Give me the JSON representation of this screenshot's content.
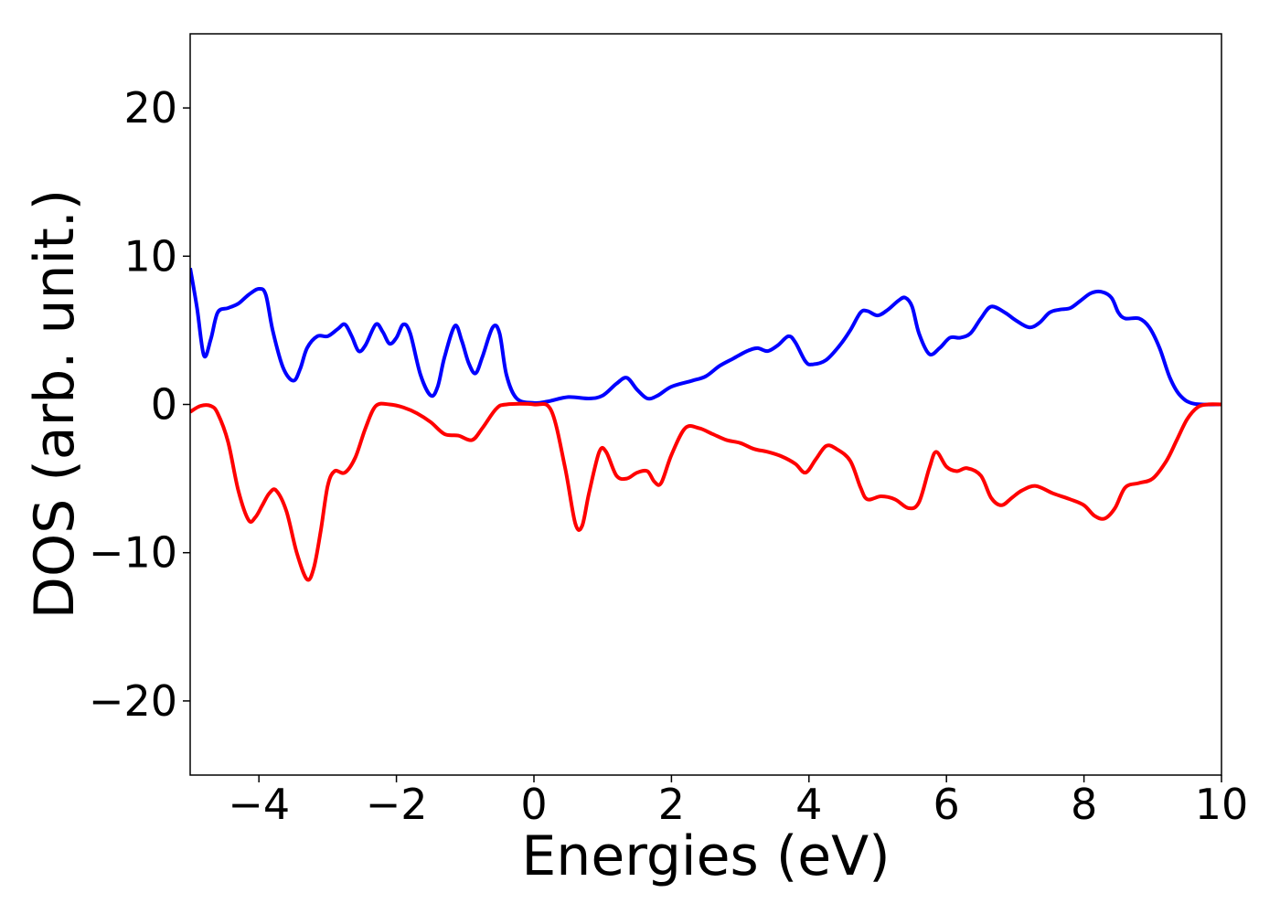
{
  "chart_data": {
    "type": "line",
    "xlabel": "Energies (eV)",
    "ylabel": "DOS (arb. unit.)",
    "xlim": [
      -5,
      10
    ],
    "ylim": [
      -25,
      25
    ],
    "x_ticks": [
      -4,
      -2,
      0,
      2,
      4,
      6,
      8,
      10
    ],
    "y_ticks": [
      -20,
      -10,
      0,
      10,
      20
    ],
    "x_tick_labels": [
      "−4",
      "−2",
      "0",
      "2",
      "4",
      "6",
      "8",
      "10"
    ],
    "y_tick_labels": [
      "−20",
      "−10",
      "0",
      "10",
      "20"
    ],
    "grid": false,
    "series": [
      {
        "color": "#0000ff",
        "points": [
          [
            -5.0,
            9.2
          ],
          [
            -4.9,
            6.5
          ],
          [
            -4.8,
            3.3
          ],
          [
            -4.7,
            4.4
          ],
          [
            -4.6,
            6.2
          ],
          [
            -4.45,
            6.5
          ],
          [
            -4.3,
            6.8
          ],
          [
            -4.15,
            7.4
          ],
          [
            -4.0,
            7.8
          ],
          [
            -3.9,
            7.4
          ],
          [
            -3.8,
            5.0
          ],
          [
            -3.65,
            2.5
          ],
          [
            -3.5,
            1.6
          ],
          [
            -3.4,
            2.4
          ],
          [
            -3.3,
            3.8
          ],
          [
            -3.15,
            4.6
          ],
          [
            -3.0,
            4.6
          ],
          [
            -2.85,
            5.1
          ],
          [
            -2.75,
            5.4
          ],
          [
            -2.65,
            4.6
          ],
          [
            -2.55,
            3.6
          ],
          [
            -2.45,
            4.0
          ],
          [
            -2.3,
            5.4
          ],
          [
            -2.2,
            4.9
          ],
          [
            -2.1,
            4.1
          ],
          [
            -2.0,
            4.5
          ],
          [
            -1.9,
            5.4
          ],
          [
            -1.8,
            4.8
          ],
          [
            -1.65,
            2.0
          ],
          [
            -1.5,
            0.6
          ],
          [
            -1.4,
            1.2
          ],
          [
            -1.3,
            3.2
          ],
          [
            -1.15,
            5.3
          ],
          [
            -1.05,
            4.3
          ],
          [
            -0.95,
            2.8
          ],
          [
            -0.85,
            2.1
          ],
          [
            -0.75,
            3.2
          ],
          [
            -0.6,
            5.2
          ],
          [
            -0.5,
            4.8
          ],
          [
            -0.4,
            2.0
          ],
          [
            -0.25,
            0.4
          ],
          [
            0.0,
            0.1
          ],
          [
            0.2,
            0.2
          ],
          [
            0.5,
            0.5
          ],
          [
            0.8,
            0.4
          ],
          [
            1.0,
            0.6
          ],
          [
            1.2,
            1.4
          ],
          [
            1.35,
            1.8
          ],
          [
            1.5,
            1.0
          ],
          [
            1.65,
            0.4
          ],
          [
            1.8,
            0.6
          ],
          [
            2.0,
            1.2
          ],
          [
            2.3,
            1.6
          ],
          [
            2.5,
            1.9
          ],
          [
            2.7,
            2.6
          ],
          [
            2.9,
            3.1
          ],
          [
            3.1,
            3.6
          ],
          [
            3.25,
            3.8
          ],
          [
            3.4,
            3.6
          ],
          [
            3.55,
            4.0
          ],
          [
            3.7,
            4.6
          ],
          [
            3.8,
            4.2
          ],
          [
            3.95,
            2.9
          ],
          [
            4.05,
            2.7
          ],
          [
            4.25,
            3.0
          ],
          [
            4.45,
            4.0
          ],
          [
            4.6,
            5.0
          ],
          [
            4.75,
            6.2
          ],
          [
            4.85,
            6.3
          ],
          [
            5.0,
            6.0
          ],
          [
            5.15,
            6.4
          ],
          [
            5.3,
            7.0
          ],
          [
            5.4,
            7.2
          ],
          [
            5.5,
            6.6
          ],
          [
            5.6,
            4.8
          ],
          [
            5.75,
            3.4
          ],
          [
            5.9,
            3.8
          ],
          [
            6.05,
            4.5
          ],
          [
            6.2,
            4.5
          ],
          [
            6.35,
            4.8
          ],
          [
            6.5,
            5.8
          ],
          [
            6.65,
            6.6
          ],
          [
            6.85,
            6.2
          ],
          [
            7.0,
            5.7
          ],
          [
            7.2,
            5.2
          ],
          [
            7.35,
            5.5
          ],
          [
            7.5,
            6.2
          ],
          [
            7.65,
            6.4
          ],
          [
            7.8,
            6.5
          ],
          [
            7.95,
            7.0
          ],
          [
            8.1,
            7.5
          ],
          [
            8.25,
            7.6
          ],
          [
            8.4,
            7.2
          ],
          [
            8.5,
            6.2
          ],
          [
            8.6,
            5.8
          ],
          [
            8.8,
            5.8
          ],
          [
            8.95,
            5.2
          ],
          [
            9.1,
            3.8
          ],
          [
            9.25,
            1.8
          ],
          [
            9.4,
            0.6
          ],
          [
            9.6,
            0.05
          ],
          [
            10.0,
            0.0
          ]
        ]
      },
      {
        "color": "#ff0000",
        "points": [
          [
            -5.0,
            -0.5
          ],
          [
            -4.85,
            -0.1
          ],
          [
            -4.7,
            -0.1
          ],
          [
            -4.6,
            -0.6
          ],
          [
            -4.45,
            -2.5
          ],
          [
            -4.3,
            -5.8
          ],
          [
            -4.15,
            -7.8
          ],
          [
            -4.05,
            -7.6
          ],
          [
            -3.95,
            -6.8
          ],
          [
            -3.85,
            -6.0
          ],
          [
            -3.75,
            -5.8
          ],
          [
            -3.6,
            -7.2
          ],
          [
            -3.45,
            -10.0
          ],
          [
            -3.3,
            -11.8
          ],
          [
            -3.2,
            -11.0
          ],
          [
            -3.1,
            -8.5
          ],
          [
            -3.0,
            -5.5
          ],
          [
            -2.9,
            -4.5
          ],
          [
            -2.75,
            -4.6
          ],
          [
            -2.6,
            -3.6
          ],
          [
            -2.45,
            -1.6
          ],
          [
            -2.3,
            -0.1
          ],
          [
            -2.1,
            0.0
          ],
          [
            -1.9,
            -0.2
          ],
          [
            -1.7,
            -0.6
          ],
          [
            -1.5,
            -1.2
          ],
          [
            -1.3,
            -2.0
          ],
          [
            -1.1,
            -2.1
          ],
          [
            -0.9,
            -2.4
          ],
          [
            -0.75,
            -1.6
          ],
          [
            -0.55,
            -0.3
          ],
          [
            -0.4,
            0.0
          ],
          [
            0.0,
            0.0
          ],
          [
            0.25,
            -0.4
          ],
          [
            0.45,
            -4.2
          ],
          [
            0.6,
            -8.0
          ],
          [
            0.7,
            -8.2
          ],
          [
            0.8,
            -6.0
          ],
          [
            0.95,
            -3.2
          ],
          [
            1.05,
            -3.2
          ],
          [
            1.2,
            -4.8
          ],
          [
            1.35,
            -5.0
          ],
          [
            1.5,
            -4.6
          ],
          [
            1.65,
            -4.5
          ],
          [
            1.75,
            -5.2
          ],
          [
            1.85,
            -5.3
          ],
          [
            2.0,
            -3.4
          ],
          [
            2.2,
            -1.6
          ],
          [
            2.4,
            -1.6
          ],
          [
            2.6,
            -2.0
          ],
          [
            2.8,
            -2.4
          ],
          [
            3.0,
            -2.6
          ],
          [
            3.2,
            -3.0
          ],
          [
            3.4,
            -3.2
          ],
          [
            3.6,
            -3.5
          ],
          [
            3.8,
            -4.0
          ],
          [
            3.95,
            -4.6
          ],
          [
            4.1,
            -3.7
          ],
          [
            4.25,
            -2.8
          ],
          [
            4.4,
            -3.0
          ],
          [
            4.6,
            -3.8
          ],
          [
            4.75,
            -5.6
          ],
          [
            4.85,
            -6.4
          ],
          [
            5.05,
            -6.2
          ],
          [
            5.25,
            -6.4
          ],
          [
            5.45,
            -7.0
          ],
          [
            5.6,
            -6.6
          ],
          [
            5.75,
            -4.3
          ],
          [
            5.85,
            -3.2
          ],
          [
            6.0,
            -4.2
          ],
          [
            6.15,
            -4.5
          ],
          [
            6.3,
            -4.3
          ],
          [
            6.5,
            -4.8
          ],
          [
            6.65,
            -6.3
          ],
          [
            6.8,
            -6.8
          ],
          [
            6.95,
            -6.3
          ],
          [
            7.1,
            -5.8
          ],
          [
            7.3,
            -5.5
          ],
          [
            7.55,
            -6.0
          ],
          [
            7.8,
            -6.4
          ],
          [
            8.0,
            -6.8
          ],
          [
            8.15,
            -7.5
          ],
          [
            8.3,
            -7.7
          ],
          [
            8.45,
            -7.0
          ],
          [
            8.6,
            -5.6
          ],
          [
            8.8,
            -5.3
          ],
          [
            9.0,
            -5.0
          ],
          [
            9.2,
            -3.8
          ],
          [
            9.35,
            -2.4
          ],
          [
            9.5,
            -1.0
          ],
          [
            9.65,
            -0.2
          ],
          [
            9.8,
            0.0
          ],
          [
            10.0,
            0.0
          ]
        ]
      }
    ]
  }
}
